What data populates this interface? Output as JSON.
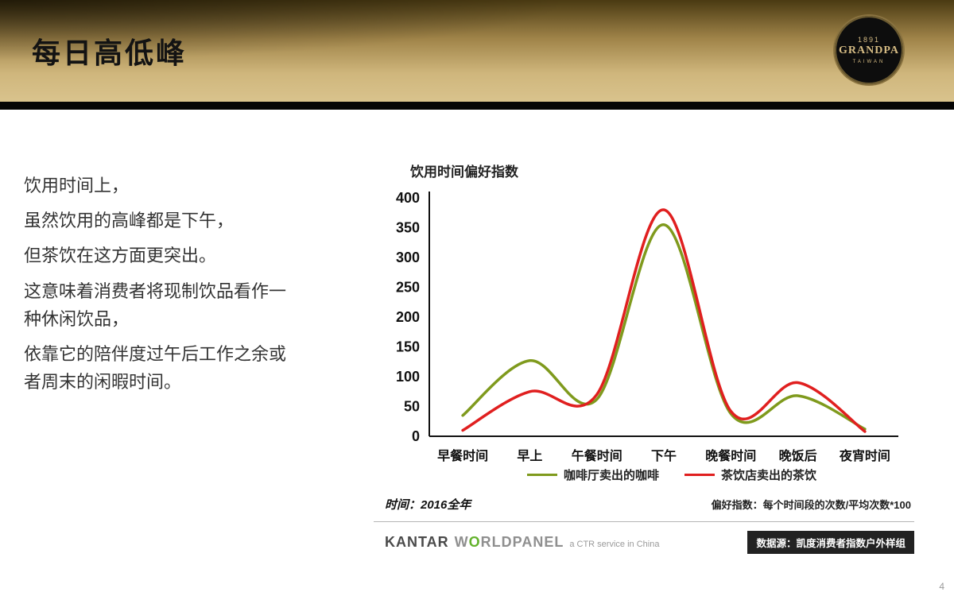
{
  "slide": {
    "title": "每日高低峰",
    "page_number": "4",
    "body_lines": [
      "饮用时间上，",
      "虽然饮用的高峰都是下午，",
      "但茶饮在这方面更突出。",
      "这意味着消费者将现制饮品看作一种休闲饮品，",
      "依靠它的陪伴度过午后工作之余或者周末的闲暇时间。"
    ],
    "logo": {
      "year": "1891",
      "name": "GRANDPA",
      "region": "TAIWAN"
    }
  },
  "annotations": {
    "time_note": "时间：2016全年",
    "index_note": "偏好指数：每个时间段的次数/平均次数*100"
  },
  "footer": {
    "kantar": "KANTAR",
    "worldpanel_pre": "W",
    "worldpanel_o": "O",
    "worldpanel_post": "RLDPANEL",
    "ctr": "a CTR service in China",
    "source_badge": "数据源：凯度消费者指数户外样组"
  },
  "chart_data": {
    "type": "line",
    "title": "饮用时间偏好指数",
    "categories": [
      "早餐时间",
      "早上",
      "午餐时间",
      "下午",
      "晚餐时间",
      "晚饭后",
      "夜宵时间"
    ],
    "series": [
      {
        "name": "咖啡厅卖出的咖啡",
        "color": "#7f9a1d",
        "values": [
          35,
          127,
          62,
          355,
          38,
          68,
          12
        ]
      },
      {
        "name": "茶饮店卖出的茶饮",
        "color": "#e01f1f",
        "values": [
          10,
          75,
          70,
          380,
          42,
          90,
          8
        ]
      }
    ],
    "xlabel": "",
    "ylabel": "",
    "ylim": [
      0,
      400
    ],
    "ytick_step": 50,
    "grid": false,
    "legend_position": "bottom"
  }
}
